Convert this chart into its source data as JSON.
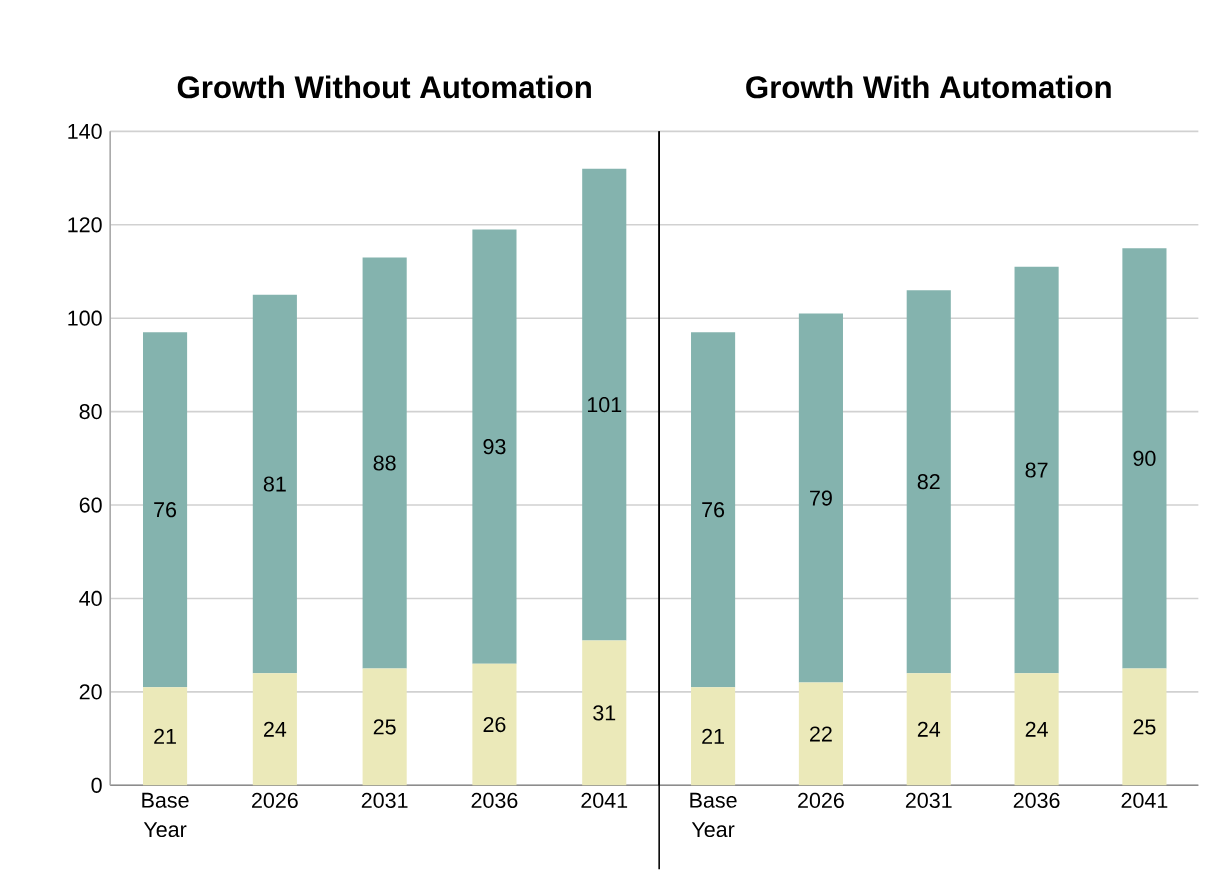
{
  "chart_data": [
    {
      "type": "bar",
      "stacked": true,
      "title": "Growth Without Automation",
      "categories": [
        "Base Year",
        "2026",
        "2031",
        "2036",
        "2041"
      ],
      "series": [
        {
          "color": "#ebe9b9",
          "values": [
            21,
            24,
            25,
            26,
            31
          ]
        },
        {
          "color": "#84b3ae",
          "values": [
            76,
            81,
            88,
            93,
            101
          ]
        }
      ],
      "ylim": [
        0,
        140
      ],
      "yticks": [
        0,
        20,
        40,
        60,
        80,
        100,
        120,
        140
      ],
      "grid": "y",
      "data_labels": true
    },
    {
      "type": "bar",
      "stacked": true,
      "title": "Growth With Automation",
      "categories": [
        "Base Year",
        "2026",
        "2031",
        "2036",
        "2041"
      ],
      "series": [
        {
          "color": "#ebe9b9",
          "values": [
            21,
            22,
            24,
            24,
            25
          ]
        },
        {
          "color": "#84b3ae",
          "values": [
            76,
            79,
            82,
            87,
            90
          ]
        }
      ],
      "ylim": [
        0,
        140
      ],
      "yticks": [
        0,
        20,
        40,
        60,
        80,
        100,
        120,
        140
      ],
      "grid": "y",
      "data_labels": true,
      "tick_labels": "x"
    }
  ]
}
